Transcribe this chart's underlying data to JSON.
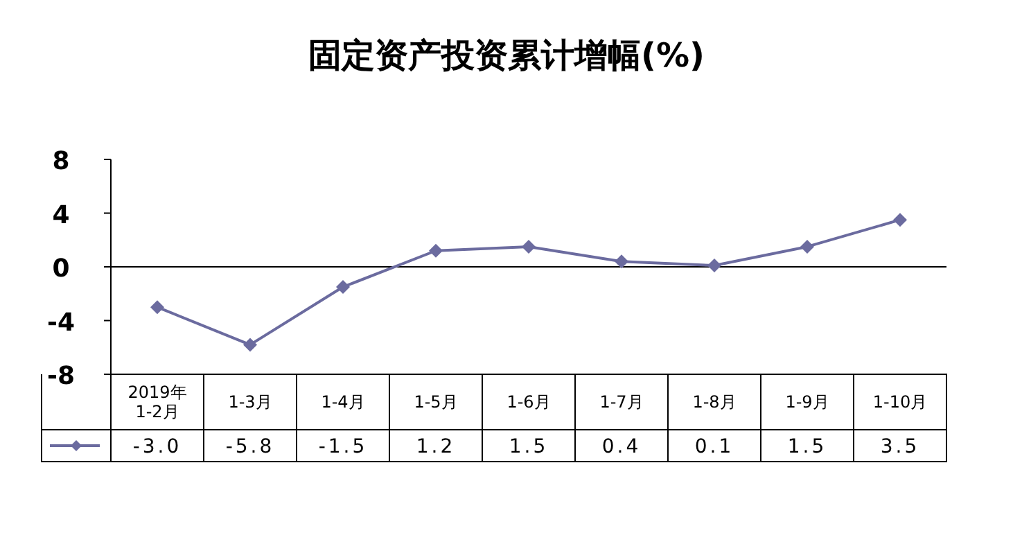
{
  "chart_data": {
    "type": "line",
    "title": "固定资产投资累计增幅(%)",
    "categories": [
      "2019年\n1-2月",
      "1-3月",
      "1-4月",
      "1-5月",
      "1-6月",
      "1-7月",
      "1-8月",
      "1-9月",
      "1-10月"
    ],
    "series": [
      {
        "color": "#6b6b9f",
        "values": [
          -3.0,
          -5.8,
          -1.5,
          1.2,
          1.5,
          0.4,
          0.1,
          1.5,
          3.5
        ],
        "value_labels": [
          "-3.0",
          "-5.8",
          "-1.5",
          "1.2",
          "1.5",
          "0.4",
          "0.1",
          "1.5",
          "3.5"
        ]
      }
    ],
    "ylim": [
      -8,
      8
    ],
    "yticks": [
      -8,
      -4,
      0,
      4,
      8
    ],
    "marker": "diamond",
    "line_style": "solid"
  }
}
